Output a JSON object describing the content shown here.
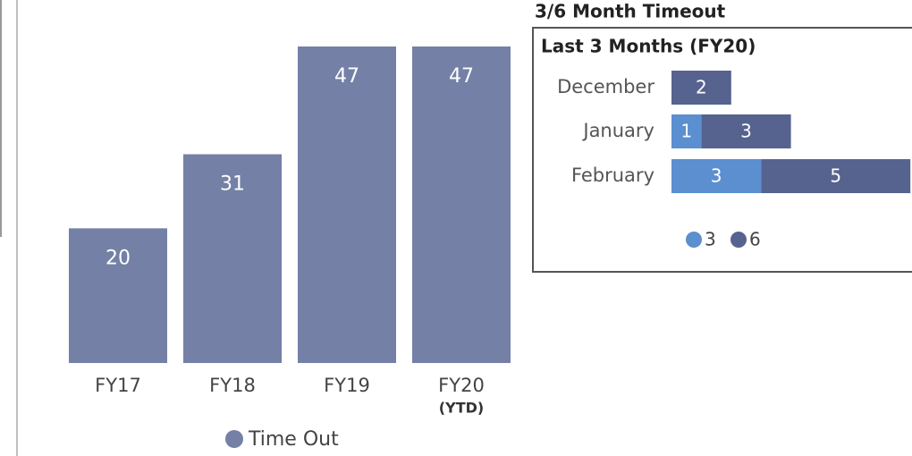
{
  "chart_data": [
    {
      "type": "bar",
      "categories": [
        "FY17",
        "FY18",
        "FY19",
        "FY20"
      ],
      "annotations": [
        "(YTD)"
      ],
      "series": [
        {
          "name": "Time Out",
          "color": "#7480a6",
          "values": [
            20,
            31,
            47,
            47
          ]
        }
      ]
    },
    {
      "type": "stacked-barh",
      "title": "3/6 Month Timeout",
      "subtitle": "Last 3 Months (FY20)",
      "categories": [
        "December",
        "January",
        "February"
      ],
      "series": [
        {
          "name": "3",
          "color": "#5b8fd0",
          "values": [
            null,
            1,
            3
          ]
        },
        {
          "name": "6",
          "color": "#56638f",
          "values": [
            2,
            3,
            5
          ]
        }
      ]
    }
  ]
}
